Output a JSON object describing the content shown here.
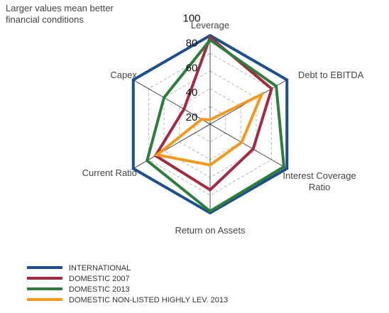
{
  "chart_data": {
    "type": "radar",
    "note": [
      "Larger values mean better",
      "financial conditions"
    ],
    "categories": [
      "Leverage",
      "Debt to EBITDA",
      "Interest Coverage Ratio",
      "Return on Assets",
      "Current Ratio",
      "Capex"
    ],
    "rlim": [
      0,
      100
    ],
    "rticks": [
      20,
      40,
      60,
      80,
      100
    ],
    "grid": true,
    "series": [
      {
        "name": "INTERNATIONAL",
        "color": "#1d4f8f",
        "values": [
          100,
          100,
          100,
          100,
          100,
          100
        ]
      },
      {
        "name": "DOMESTIC 2007",
        "color": "#a32a40",
        "values": [
          98,
          80,
          56,
          74,
          71,
          34
        ]
      },
      {
        "name": "DOMESTIC 2013",
        "color": "#2f7d3b",
        "values": [
          95,
          86,
          96,
          98,
          82,
          60
        ]
      },
      {
        "name": "DOMESTIC NON-LISTED HIGHLY LEV. 2013",
        "color": "#f39a1e",
        "values": [
          5,
          67,
          41,
          46,
          69,
          11
        ]
      }
    ]
  }
}
